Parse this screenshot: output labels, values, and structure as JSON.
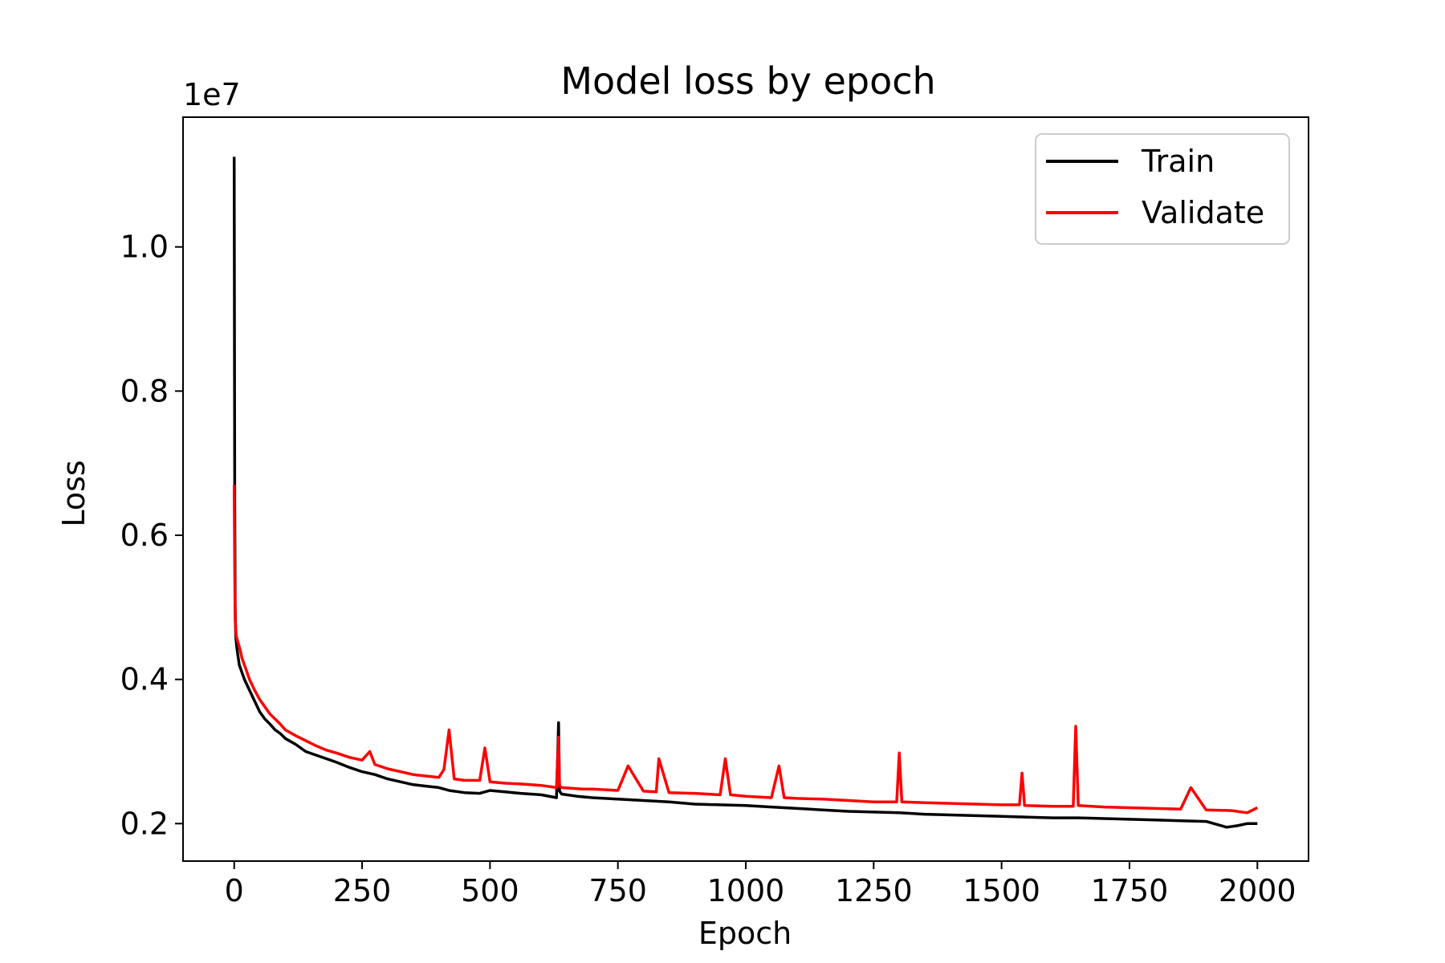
{
  "chart_data": {
    "type": "line",
    "title": "Model loss by epoch",
    "xlabel": "Epoch",
    "ylabel": "Loss",
    "y_offset_label": "1e7",
    "y_scale_factor": 10000000,
    "xlim": [
      -100,
      2100
    ],
    "ylim": [
      0.148,
      1.18
    ],
    "x_ticks": [
      0,
      250,
      500,
      750,
      1000,
      1250,
      1500,
      1750,
      2000
    ],
    "x_tick_labels": [
      "0",
      "250",
      "500",
      "750",
      "1000",
      "1250",
      "1500",
      "1750",
      "2000"
    ],
    "y_ticks": [
      0.2,
      0.4,
      0.6,
      0.8,
      1.0
    ],
    "y_tick_labels": [
      "0.2",
      "0.4",
      "0.6",
      "0.8",
      "1.0"
    ],
    "grid": false,
    "legend_position": "top-right",
    "series": [
      {
        "name": "Train",
        "color": "#000000",
        "x": [
          0,
          1,
          2,
          3,
          5,
          8,
          10,
          15,
          20,
          30,
          40,
          50,
          60,
          70,
          80,
          90,
          100,
          120,
          140,
          160,
          180,
          200,
          225,
          250,
          275,
          300,
          325,
          350,
          375,
          400,
          420,
          450,
          480,
          500,
          530,
          560,
          600,
          630,
          634,
          636,
          640,
          670,
          700,
          750,
          800,
          850,
          900,
          950,
          1000,
          1050,
          1100,
          1150,
          1200,
          1250,
          1300,
          1350,
          1400,
          1450,
          1500,
          1550,
          1600,
          1650,
          1700,
          1750,
          1800,
          1850,
          1900,
          1940,
          1960,
          1980,
          2000
        ],
        "values": [
          1.125,
          0.65,
          0.5,
          0.46,
          0.445,
          0.43,
          0.42,
          0.41,
          0.4,
          0.385,
          0.37,
          0.355,
          0.345,
          0.338,
          0.33,
          0.325,
          0.318,
          0.31,
          0.3,
          0.295,
          0.29,
          0.285,
          0.278,
          0.272,
          0.268,
          0.262,
          0.258,
          0.254,
          0.252,
          0.25,
          0.246,
          0.243,
          0.242,
          0.246,
          0.244,
          0.242,
          0.24,
          0.236,
          0.34,
          0.245,
          0.241,
          0.238,
          0.236,
          0.234,
          0.232,
          0.23,
          0.227,
          0.226,
          0.225,
          0.223,
          0.221,
          0.219,
          0.217,
          0.216,
          0.215,
          0.213,
          0.212,
          0.211,
          0.21,
          0.209,
          0.208,
          0.208,
          0.207,
          0.206,
          0.205,
          0.204,
          0.203,
          0.195,
          0.197,
          0.2,
          0.2
        ]
      },
      {
        "name": "Validate",
        "color": "#ff0000",
        "x": [
          0,
          1,
          2,
          4,
          8,
          12,
          15,
          20,
          30,
          40,
          50,
          60,
          70,
          80,
          90,
          100,
          120,
          140,
          160,
          180,
          200,
          225,
          250,
          265,
          275,
          300,
          325,
          350,
          375,
          400,
          410,
          420,
          430,
          450,
          480,
          490,
          500,
          530,
          560,
          600,
          630,
          634,
          636,
          640,
          680,
          700,
          750,
          770,
          800,
          825,
          830,
          850,
          900,
          950,
          960,
          970,
          1000,
          1050,
          1065,
          1075,
          1100,
          1150,
          1200,
          1250,
          1295,
          1300,
          1305,
          1350,
          1400,
          1450,
          1500,
          1535,
          1540,
          1545,
          1600,
          1640,
          1645,
          1650,
          1700,
          1750,
          1800,
          1850,
          1870,
          1900,
          1950,
          1980,
          2000
        ],
        "values": [
          0.67,
          0.55,
          0.48,
          0.46,
          0.45,
          0.44,
          0.43,
          0.42,
          0.4,
          0.385,
          0.372,
          0.362,
          0.352,
          0.345,
          0.338,
          0.33,
          0.322,
          0.315,
          0.308,
          0.302,
          0.298,
          0.292,
          0.288,
          0.3,
          0.282,
          0.276,
          0.272,
          0.268,
          0.266,
          0.264,
          0.275,
          0.33,
          0.262,
          0.26,
          0.26,
          0.305,
          0.258,
          0.256,
          0.255,
          0.253,
          0.25,
          0.32,
          0.252,
          0.25,
          0.248,
          0.248,
          0.246,
          0.28,
          0.245,
          0.244,
          0.29,
          0.243,
          0.242,
          0.24,
          0.29,
          0.24,
          0.238,
          0.236,
          0.28,
          0.236,
          0.235,
          0.234,
          0.232,
          0.23,
          0.23,
          0.298,
          0.23,
          0.229,
          0.228,
          0.227,
          0.226,
          0.226,
          0.27,
          0.225,
          0.224,
          0.224,
          0.335,
          0.225,
          0.223,
          0.222,
          0.221,
          0.22,
          0.25,
          0.219,
          0.218,
          0.215,
          0.222
        ]
      }
    ]
  }
}
